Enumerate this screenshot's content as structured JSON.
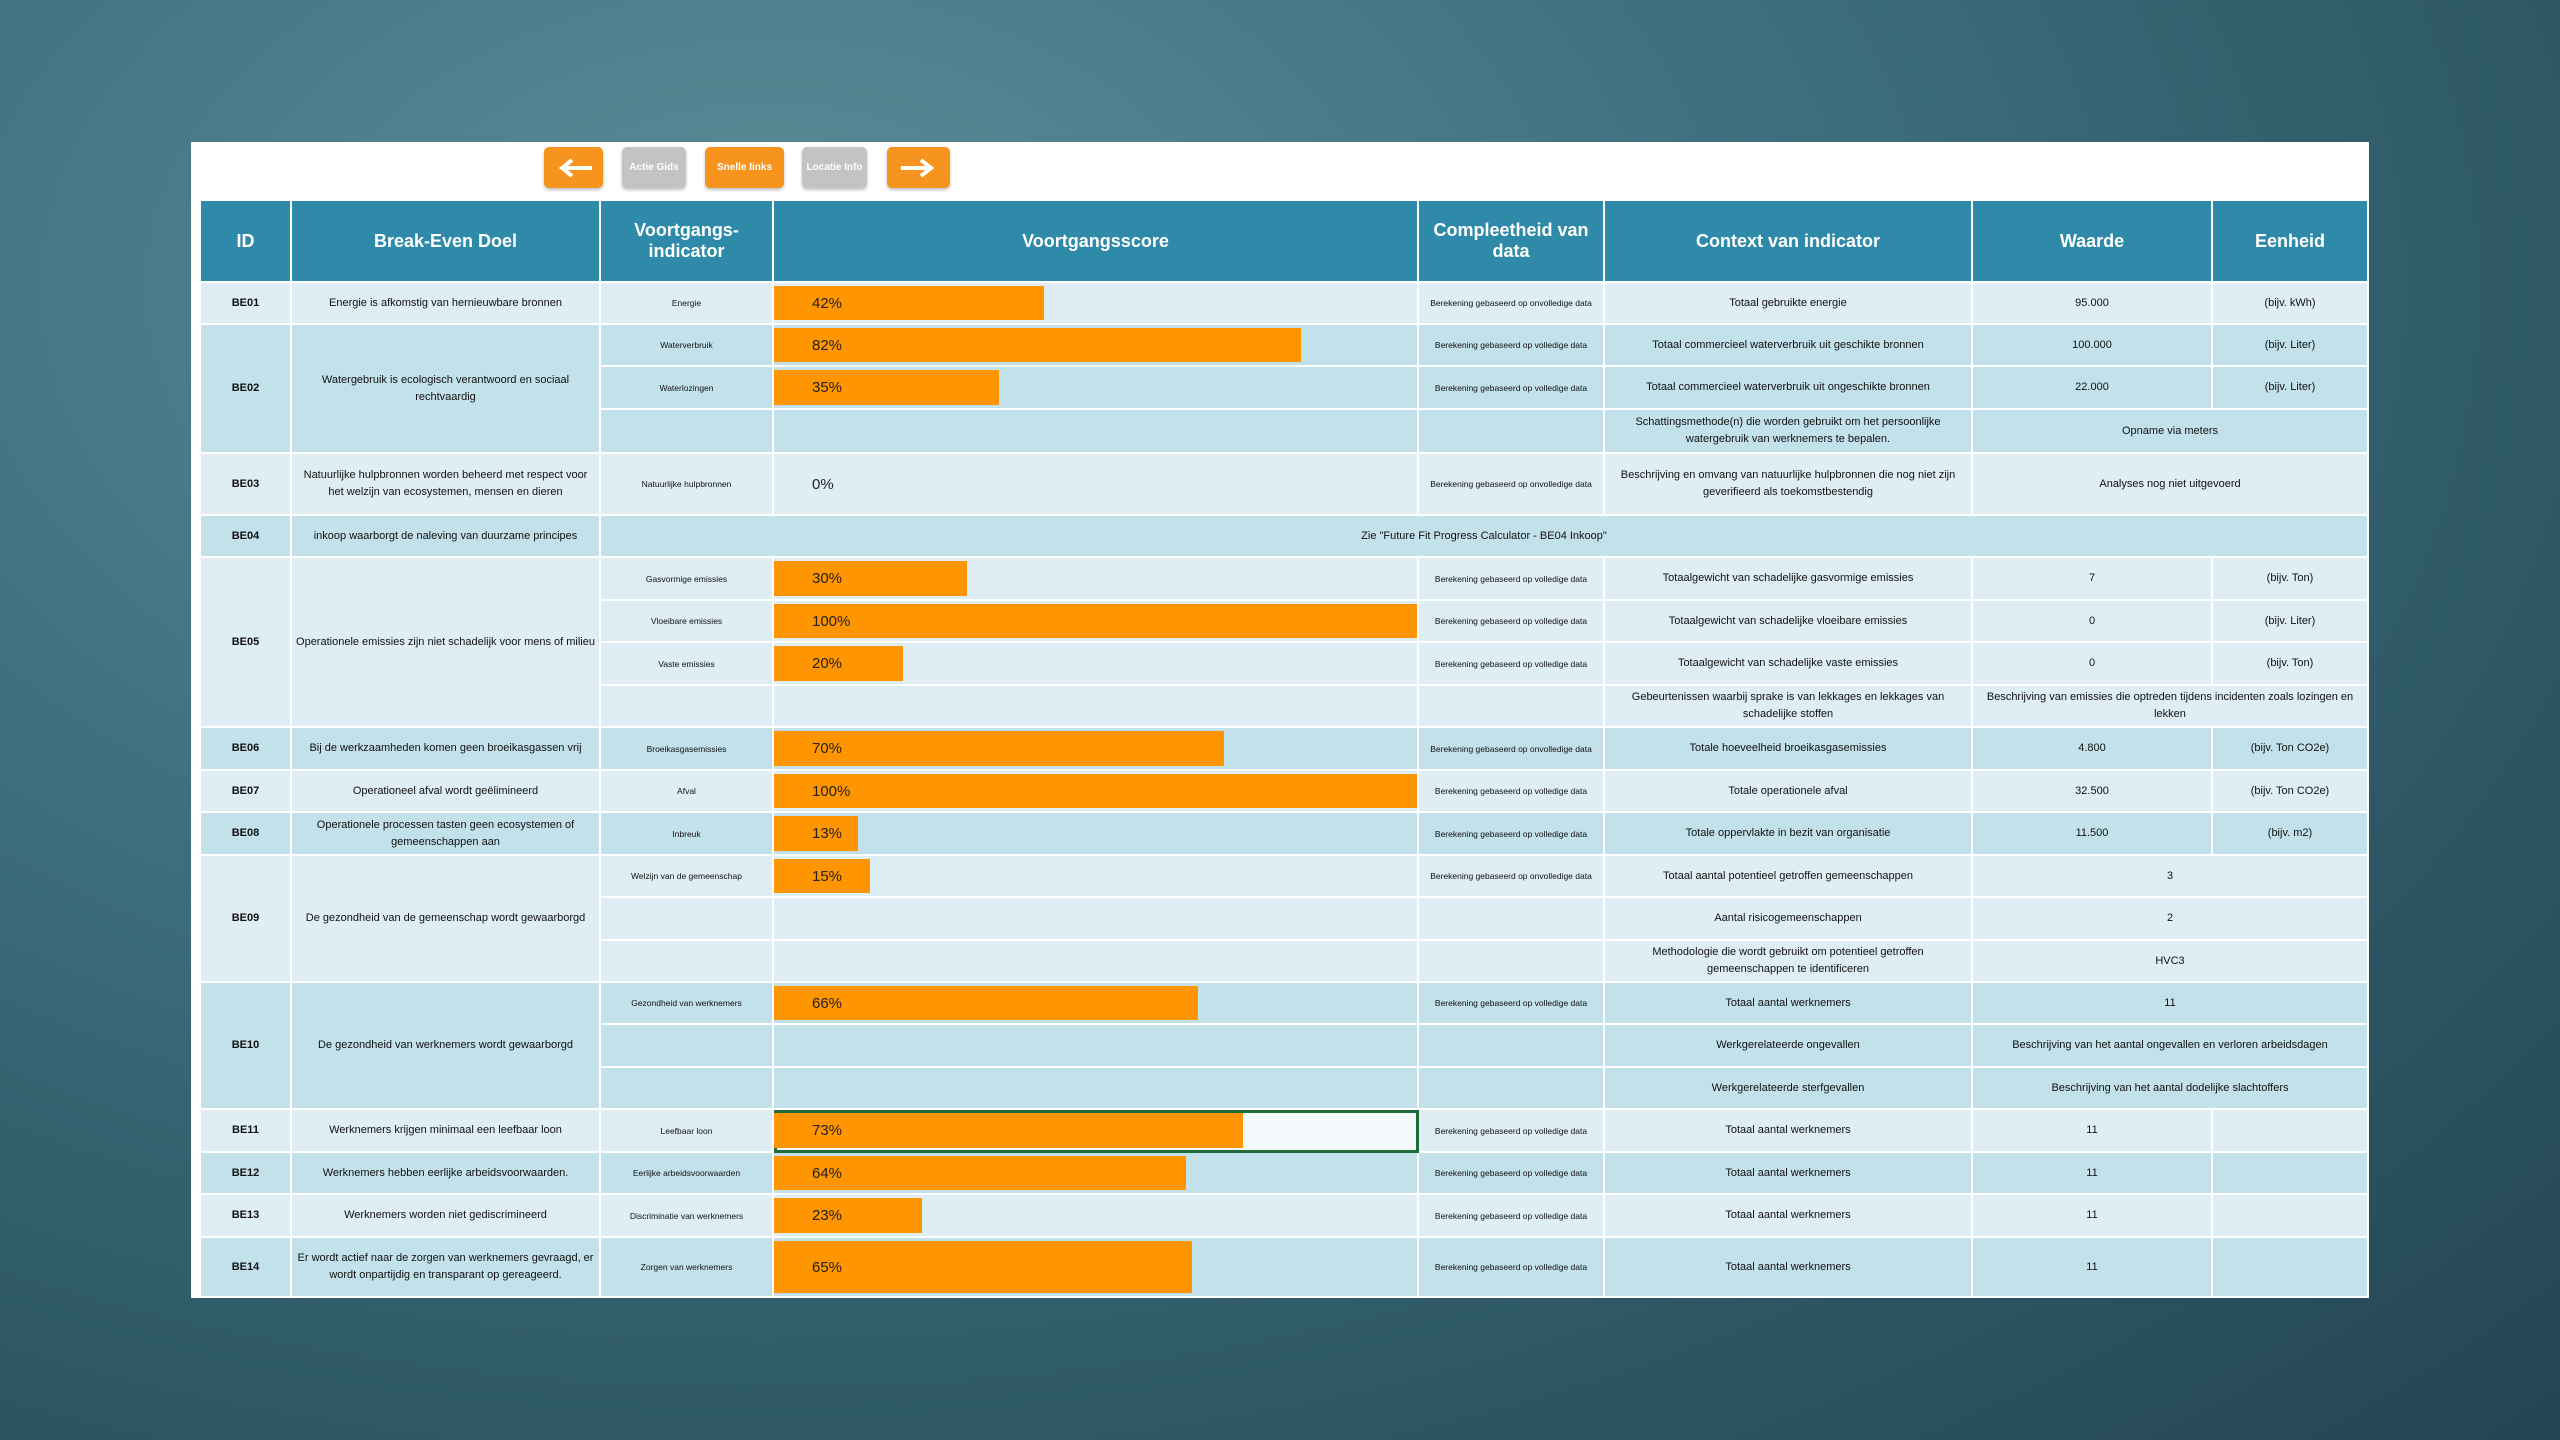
{
  "toolbar": {
    "buttons": [
      "Actie Gids",
      "Snelle links",
      "Locatie Info"
    ]
  },
  "table": {
    "headers": [
      "ID",
      "Break-Even Doel",
      "Voortgangs-indicator",
      "Voortgangsscore",
      "Compleetheid van data",
      "Context van indicator",
      "Waarde",
      "Eenheid"
    ],
    "groups": [
      {
        "id": "BE01",
        "goal": "Energie is afkomstig van hernieuwbare bronnen",
        "rows": [
          {
            "indicator": "Energie",
            "score": {
              "value": 42,
              "label": "42%"
            },
            "completeness": "Berekening gebaseerd op onvolledige data",
            "context": "Totaal gebruikte energie",
            "waarde": "95.000",
            "eenheid": "(bijv. kWh)"
          }
        ]
      },
      {
        "id": "BE02",
        "goal": "Watergebruik is ecologisch verantwoord en sociaal rechtvaardig",
        "rows": [
          {
            "indicator": "Waterverbruik",
            "score": {
              "value": 82,
              "label": "82%"
            },
            "completeness": "Berekening gebaseerd op volledige data",
            "context": "Totaal commercieel waterverbruik uit geschikte bronnen",
            "waarde": "100.000",
            "eenheid": "(bijv. Liter)"
          },
          {
            "indicator": "Waterlozingen",
            "score": {
              "value": 35,
              "label": "35%"
            },
            "completeness": "Berekening gebaseerd op volledige data",
            "context": "Totaal commercieel waterverbruik uit ongeschikte bronnen",
            "waarde": "22.000",
            "eenheid": "(bijv. Liter)"
          },
          {
            "context": "Schattingsmethode(n) die worden gebruikt om het persoonlijke watergebruik van werknemers te bepalen.",
            "merged": "Opname via meters"
          }
        ]
      },
      {
        "id": "BE03",
        "goal": "Natuurlijke hulpbronnen worden beheerd met respect voor het welzijn van ecosystemen, mensen en dieren",
        "rows": [
          {
            "indicator": "Natuurlijke hulpbronnen",
            "score": {
              "value": 0,
              "label": "0%"
            },
            "completeness": "Berekening gebaseerd op onvolledige data",
            "context": "Beschrijving en omvang van natuurlijke hulpbronnen die nog niet zijn geverifieerd als toekomstbestendig",
            "merged": "Analyses nog niet uitgevoerd"
          }
        ]
      },
      {
        "id": "BE04",
        "goal": "inkoop waarborgt de naleving van duurzame principes",
        "rows": [
          {
            "note": "Zie \"Future Fit Progress Calculator - BE04 Inkoop\""
          }
        ]
      },
      {
        "id": "BE05",
        "goal": "Operationele emissies zijn niet schadelijk voor mens of milieu",
        "rows": [
          {
            "indicator": "Gasvormige emissies",
            "score": {
              "value": 30,
              "label": "30%"
            },
            "completeness": "Berekening gebaseerd op volledige data",
            "context": "Totaalgewicht van schadelijke gasvormige emissies",
            "waarde": "7",
            "eenheid": "(bijv. Ton)"
          },
          {
            "indicator": "Vloeibare emissies",
            "score": {
              "value": 100,
              "label": "100%"
            },
            "completeness": "Berekening gebaseerd op volledige data",
            "context": "Totaalgewicht van schadelijke vloeibare emissies",
            "waarde": "0",
            "eenheid": "(bijv. Liter)"
          },
          {
            "indicator": "Vaste emissies",
            "score": {
              "value": 20,
              "label": "20%"
            },
            "completeness": "Berekening gebaseerd op volledige data",
            "context": "Totaalgewicht van schadelijke vaste emissies",
            "waarde": "0",
            "eenheid": "(bijv. Ton)"
          },
          {
            "context": "Gebeurtenissen waarbij sprake is van lekkages en lekkages van schadelijke stoffen",
            "merged": "Beschrijving van emissies die optreden tijdens incidenten zoals lozingen en lekken"
          }
        ]
      },
      {
        "id": "BE06",
        "goal": "Bij de werkzaamheden komen geen broeikasgassen vrij",
        "rows": [
          {
            "indicator": "Broeikasgasemissies",
            "score": {
              "value": 70,
              "label": "70%"
            },
            "completeness": "Berekening gebaseerd op onvolledige data",
            "context": "Totale hoeveelheid broeikasgasemissies",
            "waarde": "4.800",
            "eenheid": "(bijv. Ton CO2e)"
          }
        ]
      },
      {
        "id": "BE07",
        "goal": "Operationeel afval wordt geëlimineerd",
        "rows": [
          {
            "indicator": "Afval",
            "score": {
              "value": 100,
              "label": "100%"
            },
            "completeness": "Berekening gebaseerd op volledige data",
            "context": "Totale operationele afval",
            "waarde": "32.500",
            "eenheid": "(bijv. Ton CO2e)"
          }
        ]
      },
      {
        "id": "BE08",
        "goal": "Operationele processen tasten geen ecosystemen of gemeenschappen aan",
        "rows": [
          {
            "indicator": "Inbreuk",
            "score": {
              "value": 13,
              "label": "13%"
            },
            "completeness": "Berekening gebaseerd op volledige data",
            "context": "Totale oppervlakte in bezit van organisatie",
            "waarde": "11.500",
            "eenheid": "(bijv. m2)"
          }
        ]
      },
      {
        "id": "BE09",
        "goal": "De gezondheid van de gemeenschap wordt gewaarborgd",
        "rows": [
          {
            "indicator": "Welzijn van de gemeenschap",
            "score": {
              "value": 15,
              "label": "15%"
            },
            "completeness": "Berekening gebaseerd op onvolledige data",
            "context": "Totaal aantal potentieel getroffen gemeenschappen",
            "merged": "3"
          },
          {
            "context": "Aantal risicogemeenschappen",
            "merged": "2"
          },
          {
            "context": "Methodologie die wordt gebruikt om potentieel getroffen gemeenschappen te identificeren",
            "merged": "HVC3"
          }
        ]
      },
      {
        "id": "BE10",
        "goal": "De gezondheid van werknemers wordt gewaarborgd",
        "rows": [
          {
            "indicator": "Gezondheid van werknemers",
            "score": {
              "value": 66,
              "label": "66%"
            },
            "completeness": "Berekening gebaseerd op volledige data",
            "context": "Totaal aantal werknemers",
            "merged": "11"
          },
          {
            "context": "Werkgerelateerde ongevallen",
            "merged": "Beschrijving van het aantal ongevallen en verloren arbeidsdagen"
          },
          {
            "context": "Werkgerelateerde sterfgevallen",
            "merged": "Beschrijving van het aantal dodelijke slachtoffers"
          }
        ]
      },
      {
        "id": "BE11",
        "goal": "Werknemers krijgen minimaal een leefbaar loon",
        "rows": [
          {
            "indicator": "Leefbaar loon",
            "score": {
              "value": 73,
              "label": "73%"
            },
            "completeness": "Berekening gebaseerd op volledige data",
            "context": "Totaal aantal werknemers",
            "waarde": "11"
          }
        ]
      },
      {
        "id": "BE12",
        "goal": "Werknemers hebben eerlijke arbeidsvoorwaarden.",
        "rows": [
          {
            "indicator": "Eerlijke arbeidsvoorwaarden",
            "score": {
              "value": 64,
              "label": "64%"
            },
            "completeness": "Berekening gebaseerd op volledige data",
            "context": "Totaal aantal werknemers",
            "waarde": "11"
          }
        ]
      },
      {
        "id": "BE13",
        "goal": "Werknemers worden niet gediscrimineerd",
        "rows": [
          {
            "indicator": "Discriminatie van werknemers",
            "score": {
              "value": 23,
              "label": "23%"
            },
            "completeness": "Berekening gebaseerd op volledige data",
            "context": "Totaal aantal werknemers",
            "waarde": "11"
          }
        ]
      },
      {
        "id": "BE14",
        "goal": "Er wordt actief naar de zorgen van werknemers gevraagd, er wordt onpartijdig en transparant op gereageerd.",
        "rows": [
          {
            "indicator": "Zorgen van werknemers",
            "score": {
              "value": 65,
              "label": "65%"
            },
            "completeness": "Berekening gebaseerd op volledige data",
            "context": "Totaal aantal werknemers",
            "waarde": "11"
          }
        ]
      }
    ]
  }
}
